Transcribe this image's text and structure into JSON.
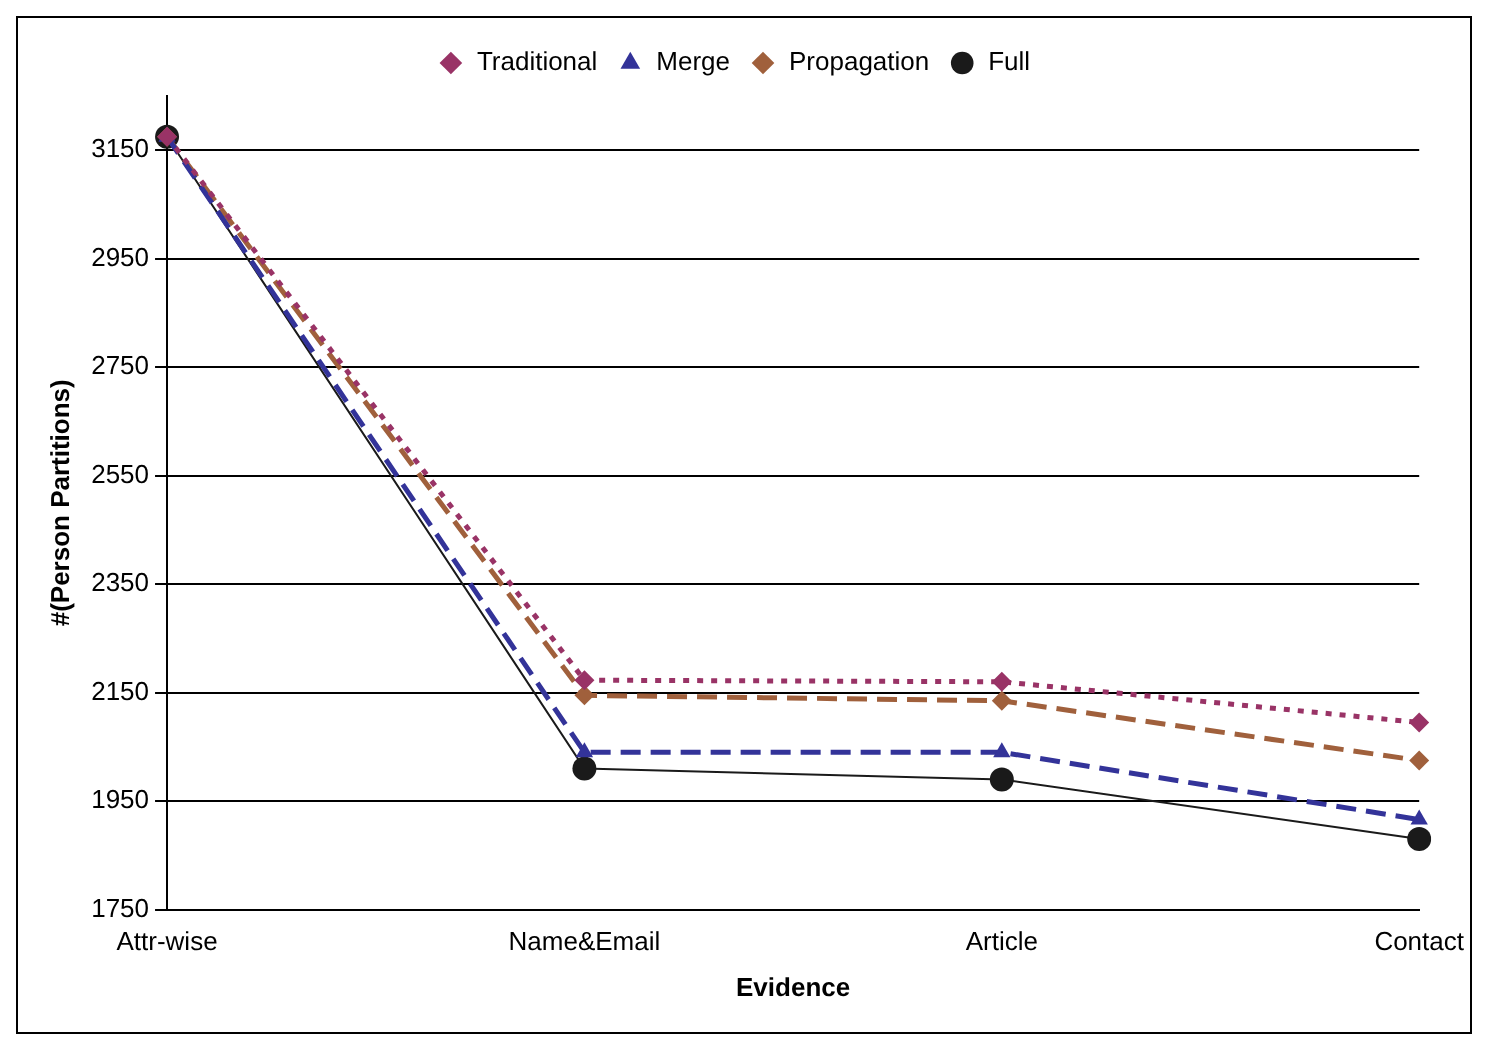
{
  "chart_data": {
    "type": "line",
    "xlabel": "Evidence",
    "ylabel": "#(Person Partitions)",
    "categories": [
      "Attr-wise",
      "Name&Email",
      "Article",
      "Contact"
    ],
    "series": [
      {
        "name": "Traditional",
        "color": "#993366",
        "marker": "diamond",
        "line_style": "dotted",
        "values": [
          3175,
          2173,
          2170,
          2095
        ]
      },
      {
        "name": "Merge",
        "color": "#333399",
        "marker": "triangle",
        "line_style": "dashed",
        "values": [
          3175,
          2040,
          2040,
          1916
        ]
      },
      {
        "name": "Propagation",
        "color": "#a0603c",
        "marker": "diamond",
        "line_style": "dashed",
        "values": [
          3175,
          2145,
          2135,
          2025
        ]
      },
      {
        "name": "Full",
        "color": "#1a1a1a",
        "marker": "circle",
        "line_style": "solid",
        "values": [
          3175,
          2010,
          1990,
          1880
        ]
      }
    ],
    "ylim": [
      1750,
      3250
    ],
    "yticks": [
      1750,
      1950,
      2150,
      2350,
      2550,
      2750,
      2950,
      3150
    ],
    "grid": "y",
    "legend": "top"
  }
}
